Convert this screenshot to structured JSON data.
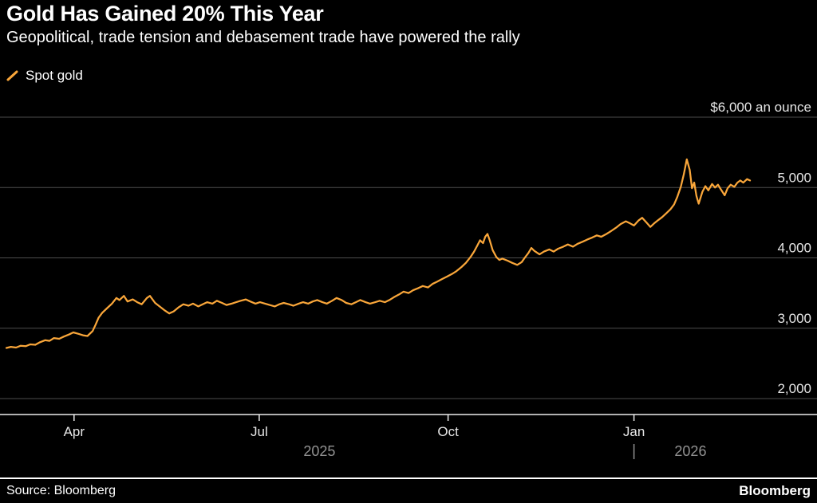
{
  "header": {
    "title": "Gold Has Gained 20% This Year",
    "subtitle": "Geopolitical, trade tension and debasement trade have powered the rally"
  },
  "legend": {
    "label": "Spot gold",
    "color": "#F9A63A"
  },
  "footer": {
    "source": "Source: Bloomberg",
    "brand": "Bloomberg"
  },
  "colors": {
    "background": "#000000",
    "line": "#F9A63A",
    "grid": "#4D4D4D",
    "axis": "#ECECEC",
    "tick_text": "#E6E6E6",
    "year_text": "#929292"
  },
  "chart_data": {
    "type": "line",
    "title": "Gold Has Gained 20% This Year",
    "subtitle": "Geopolitical, trade tension and debasement trade have powered the rally",
    "ylabel": "$6,000 an ounce",
    "ylim": [
      2000,
      6000
    ],
    "grid": "horizontal",
    "legend_position": "top-left",
    "y_ticks": [
      {
        "value": 6000,
        "label": "$6,000 an ounce"
      },
      {
        "value": 5000,
        "label": "5,000"
      },
      {
        "value": 4000,
        "label": "4,000"
      },
      {
        "value": 3000,
        "label": "3,000"
      },
      {
        "value": 2000,
        "label": "2,000"
      }
    ],
    "x_ticks": [
      {
        "label": "Apr",
        "t": 0.091
      },
      {
        "label": "Jul",
        "t": 0.34
      },
      {
        "label": "Oct",
        "t": 0.594
      },
      {
        "label": "Jan",
        "t": 0.844
      }
    ],
    "year_labels": [
      {
        "label": "2025",
        "t": 0.421
      },
      {
        "label": "2026",
        "t": 0.92
      }
    ],
    "year_divider_t": 0.844,
    "series": [
      {
        "name": "Spot gold",
        "color": "#F9A63A",
        "points": [
          [
            0.0,
            2720
          ],
          [
            0.006,
            2735
          ],
          [
            0.013,
            2725
          ],
          [
            0.019,
            2750
          ],
          [
            0.026,
            2745
          ],
          [
            0.032,
            2770
          ],
          [
            0.039,
            2765
          ],
          [
            0.045,
            2800
          ],
          [
            0.052,
            2830
          ],
          [
            0.058,
            2820
          ],
          [
            0.064,
            2860
          ],
          [
            0.071,
            2850
          ],
          [
            0.077,
            2880
          ],
          [
            0.084,
            2910
          ],
          [
            0.09,
            2940
          ],
          [
            0.097,
            2920
          ],
          [
            0.103,
            2900
          ],
          [
            0.109,
            2890
          ],
          [
            0.116,
            2960
          ],
          [
            0.12,
            3050
          ],
          [
            0.124,
            3150
          ],
          [
            0.129,
            3220
          ],
          [
            0.135,
            3280
          ],
          [
            0.142,
            3350
          ],
          [
            0.148,
            3430
          ],
          [
            0.152,
            3400
          ],
          [
            0.158,
            3460
          ],
          [
            0.163,
            3380
          ],
          [
            0.17,
            3410
          ],
          [
            0.176,
            3370
          ],
          [
            0.182,
            3340
          ],
          [
            0.189,
            3430
          ],
          [
            0.193,
            3460
          ],
          [
            0.2,
            3360
          ],
          [
            0.206,
            3310
          ],
          [
            0.212,
            3260
          ],
          [
            0.219,
            3210
          ],
          [
            0.225,
            3240
          ],
          [
            0.232,
            3300
          ],
          [
            0.238,
            3340
          ],
          [
            0.245,
            3320
          ],
          [
            0.251,
            3350
          ],
          [
            0.258,
            3310
          ],
          [
            0.264,
            3340
          ],
          [
            0.27,
            3370
          ],
          [
            0.277,
            3350
          ],
          [
            0.283,
            3390
          ],
          [
            0.29,
            3360
          ],
          [
            0.296,
            3330
          ],
          [
            0.303,
            3350
          ],
          [
            0.309,
            3370
          ],
          [
            0.315,
            3390
          ],
          [
            0.322,
            3410
          ],
          [
            0.328,
            3380
          ],
          [
            0.335,
            3350
          ],
          [
            0.341,
            3370
          ],
          [
            0.348,
            3350
          ],
          [
            0.354,
            3330
          ],
          [
            0.361,
            3310
          ],
          [
            0.367,
            3340
          ],
          [
            0.373,
            3360
          ],
          [
            0.38,
            3340
          ],
          [
            0.386,
            3320
          ],
          [
            0.393,
            3350
          ],
          [
            0.399,
            3370
          ],
          [
            0.406,
            3350
          ],
          [
            0.412,
            3380
          ],
          [
            0.418,
            3400
          ],
          [
            0.425,
            3370
          ],
          [
            0.431,
            3350
          ],
          [
            0.438,
            3390
          ],
          [
            0.444,
            3430
          ],
          [
            0.451,
            3400
          ],
          [
            0.457,
            3360
          ],
          [
            0.464,
            3340
          ],
          [
            0.47,
            3370
          ],
          [
            0.476,
            3400
          ],
          [
            0.483,
            3370
          ],
          [
            0.489,
            3350
          ],
          [
            0.496,
            3370
          ],
          [
            0.502,
            3390
          ],
          [
            0.509,
            3370
          ],
          [
            0.515,
            3400
          ],
          [
            0.521,
            3440
          ],
          [
            0.528,
            3480
          ],
          [
            0.534,
            3520
          ],
          [
            0.541,
            3500
          ],
          [
            0.547,
            3540
          ],
          [
            0.554,
            3570
          ],
          [
            0.56,
            3600
          ],
          [
            0.567,
            3580
          ],
          [
            0.573,
            3630
          ],
          [
            0.579,
            3660
          ],
          [
            0.586,
            3700
          ],
          [
            0.592,
            3730
          ],
          [
            0.599,
            3770
          ],
          [
            0.605,
            3810
          ],
          [
            0.612,
            3870
          ],
          [
            0.618,
            3930
          ],
          [
            0.624,
            4010
          ],
          [
            0.629,
            4090
          ],
          [
            0.633,
            4170
          ],
          [
            0.637,
            4250
          ],
          [
            0.641,
            4210
          ],
          [
            0.644,
            4300
          ],
          [
            0.647,
            4340
          ],
          [
            0.65,
            4250
          ],
          [
            0.654,
            4110
          ],
          [
            0.659,
            4010
          ],
          [
            0.663,
            3970
          ],
          [
            0.667,
            3990
          ],
          [
            0.674,
            3960
          ],
          [
            0.68,
            3930
          ],
          [
            0.687,
            3900
          ],
          [
            0.693,
            3940
          ],
          [
            0.697,
            4000
          ],
          [
            0.702,
            4070
          ],
          [
            0.706,
            4140
          ],
          [
            0.71,
            4100
          ],
          [
            0.717,
            4050
          ],
          [
            0.723,
            4090
          ],
          [
            0.73,
            4120
          ],
          [
            0.736,
            4090
          ],
          [
            0.742,
            4130
          ],
          [
            0.749,
            4160
          ],
          [
            0.755,
            4190
          ],
          [
            0.762,
            4160
          ],
          [
            0.768,
            4200
          ],
          [
            0.775,
            4230
          ],
          [
            0.781,
            4260
          ],
          [
            0.788,
            4290
          ],
          [
            0.794,
            4320
          ],
          [
            0.8,
            4300
          ],
          [
            0.807,
            4340
          ],
          [
            0.813,
            4380
          ],
          [
            0.82,
            4430
          ],
          [
            0.826,
            4480
          ],
          [
            0.833,
            4520
          ],
          [
            0.839,
            4490
          ],
          [
            0.844,
            4460
          ],
          [
            0.85,
            4530
          ],
          [
            0.855,
            4570
          ],
          [
            0.861,
            4500
          ],
          [
            0.866,
            4440
          ],
          [
            0.871,
            4490
          ],
          [
            0.877,
            4540
          ],
          [
            0.882,
            4580
          ],
          [
            0.887,
            4630
          ],
          [
            0.893,
            4690
          ],
          [
            0.898,
            4760
          ],
          [
            0.902,
            4860
          ],
          [
            0.907,
            5010
          ],
          [
            0.911,
            5190
          ],
          [
            0.915,
            5400
          ],
          [
            0.919,
            5250
          ],
          [
            0.922,
            4990
          ],
          [
            0.925,
            5070
          ],
          [
            0.928,
            4880
          ],
          [
            0.931,
            4770
          ],
          [
            0.936,
            4940
          ],
          [
            0.94,
            5020
          ],
          [
            0.944,
            4960
          ],
          [
            0.949,
            5050
          ],
          [
            0.953,
            5000
          ],
          [
            0.957,
            5040
          ],
          [
            0.961,
            4970
          ],
          [
            0.966,
            4890
          ],
          [
            0.97,
            4990
          ],
          [
            0.974,
            5040
          ],
          [
            0.979,
            5010
          ],
          [
            0.983,
            5070
          ],
          [
            0.987,
            5100
          ],
          [
            0.991,
            5070
          ],
          [
            0.996,
            5120
          ],
          [
            1.0,
            5100
          ]
        ]
      }
    ]
  }
}
